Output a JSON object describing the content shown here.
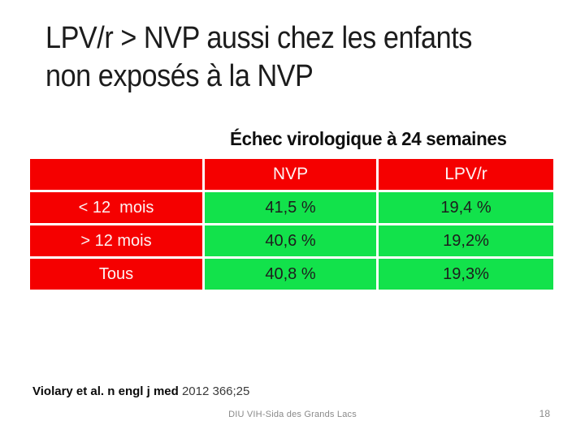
{
  "slide": {
    "title": {
      "line1": "LPV/r > NVP aussi chez les enfants",
      "line2": "non exposés à la NVP"
    },
    "table": {
      "caption": "Échec virologique à 24 semaines",
      "columns": [
        "",
        "NVP",
        "LPV/r"
      ],
      "rows": [
        {
          "label": "< 12  mois",
          "nvp": "41,5 %",
          "lpvr": "19,4 %"
        },
        {
          "label": "> 12 mois",
          "nvp": "40,6 %",
          "lpvr": "19,2%"
        },
        {
          "label": "Tous",
          "nvp": "40,8 %",
          "lpvr": "19,3%"
        }
      ],
      "colors": {
        "header_bg": "#f50000",
        "label_bg": "#f50000",
        "value_bg": "#12e24b",
        "header_text": "#ffffff",
        "value_text": "#1d1d1d"
      }
    },
    "reference": {
      "bold_part": "Violary et al. n engl j med",
      "normal_part": " 2012 366;25"
    },
    "footer": {
      "center": "DIU VIH-Sida des Grands Lacs",
      "page_number": "18"
    }
  }
}
